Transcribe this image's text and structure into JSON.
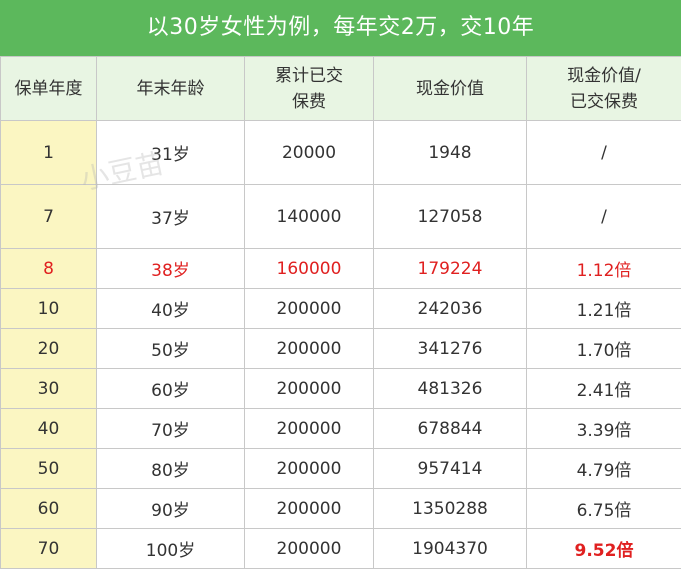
{
  "title": "以30岁女性为例，每年交2万，交10年",
  "headers": [
    "保单年度",
    "年末年龄",
    "累计已交\n保费",
    "现金价值",
    "现金价值/\n已交保费"
  ],
  "rows": [
    {
      "year": "1",
      "age": "31岁",
      "paid": "20000",
      "cash": "1948",
      "ratio": "/"
    },
    {
      "year": "7",
      "age": "37岁",
      "paid": "140000",
      "cash": "127058",
      "ratio": "/"
    },
    {
      "year": "8",
      "age": "38岁",
      "paid": "160000",
      "cash": "179224",
      "ratio": "1.12倍"
    },
    {
      "year": "10",
      "age": "40岁",
      "paid": "200000",
      "cash": "242036",
      "ratio": "1.21倍"
    },
    {
      "year": "20",
      "age": "50岁",
      "paid": "200000",
      "cash": "341276",
      "ratio": "1.70倍"
    },
    {
      "year": "30",
      "age": "60岁",
      "paid": "200000",
      "cash": "481326",
      "ratio": "2.41倍"
    },
    {
      "year": "40",
      "age": "70岁",
      "paid": "200000",
      "cash": "678844",
      "ratio": "3.39倍"
    },
    {
      "year": "50",
      "age": "80岁",
      "paid": "200000",
      "cash": "957414",
      "ratio": "4.79倍"
    },
    {
      "year": "60",
      "age": "90岁",
      "paid": "200000",
      "cash": "1350288",
      "ratio": "6.75倍"
    },
    {
      "year": "70",
      "age": "100岁",
      "paid": "200000",
      "cash": "1904370",
      "ratio": "9.52倍"
    }
  ],
  "watermark": "小豆苗",
  "colors": {
    "title_bg": "#5cb85c",
    "header_bg": "#e8f5e3",
    "year_bg": "#fbf6c2",
    "highlight": "#e02020"
  }
}
